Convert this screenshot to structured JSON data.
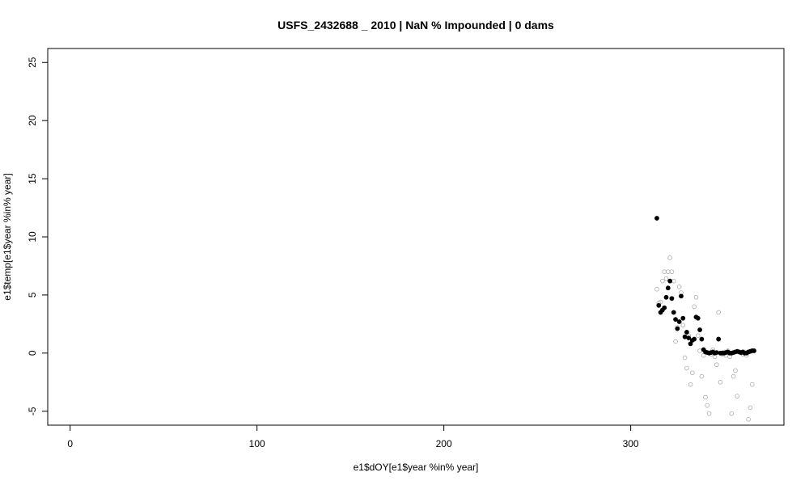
{
  "chart_data": {
    "type": "scatter",
    "title": "USFS_2432688 _ 2010   |   NaN  % Impounded |  0  dams",
    "xlabel": "e1$dOY[e1$year %in% year]",
    "ylabel": "e1$temp[e1$year %in% year]",
    "xlim": [
      -12,
      382
    ],
    "ylim": [
      -6.2,
      26.2
    ],
    "x_ticks": [
      0,
      100,
      200,
      300
    ],
    "x_tick_labels": [
      "0",
      "100",
      "200",
      "300"
    ],
    "y_ticks": [
      -5,
      0,
      5,
      10,
      15,
      20,
      25
    ],
    "y_tick_labels": [
      "-5",
      "0",
      "5",
      "10",
      "15",
      "20",
      "25"
    ],
    "grid": false,
    "series": [
      {
        "style": "filled-black",
        "color": "#000000",
        "points": [
          [
            314,
            11.6
          ],
          [
            315,
            4.1
          ],
          [
            316,
            3.5
          ],
          [
            317,
            3.7
          ],
          [
            318,
            3.9
          ],
          [
            319,
            4.8
          ],
          [
            320,
            5.6
          ],
          [
            321,
            6.2
          ],
          [
            322,
            4.7
          ],
          [
            323,
            3.5
          ],
          [
            324,
            2.9
          ],
          [
            325,
            2.1
          ],
          [
            326,
            2.7
          ],
          [
            327,
            4.9
          ],
          [
            328,
            3.0
          ],
          [
            329,
            1.4
          ],
          [
            330,
            1.8
          ],
          [
            331,
            1.3
          ],
          [
            332,
            0.8
          ],
          [
            333,
            1.1
          ],
          [
            334,
            1.2
          ],
          [
            335,
            3.1
          ],
          [
            336,
            3.0
          ],
          [
            337,
            2.0
          ],
          [
            338,
            1.2
          ],
          [
            339,
            0.3
          ],
          [
            340,
            0.1
          ],
          [
            341,
            0.05
          ],
          [
            342,
            0.0
          ],
          [
            343,
            0.05
          ],
          [
            344,
            0.1
          ],
          [
            345,
            0.0
          ],
          [
            346,
            0.05
          ],
          [
            347,
            1.2
          ],
          [
            348,
            0.0
          ],
          [
            349,
            0.0
          ],
          [
            350,
            0.0
          ],
          [
            351,
            0.05
          ],
          [
            352,
            0.1
          ],
          [
            353,
            0.0
          ],
          [
            354,
            0.0
          ],
          [
            355,
            0.05
          ],
          [
            356,
            0.1
          ],
          [
            357,
            0.15
          ],
          [
            358,
            0.1
          ],
          [
            359,
            0.05
          ],
          [
            360,
            0.1
          ],
          [
            361,
            0.0
          ],
          [
            362,
            0.0
          ],
          [
            363,
            0.1
          ],
          [
            364,
            0.15
          ],
          [
            365,
            0.2
          ],
          [
            366,
            0.2
          ]
        ]
      },
      {
        "style": "open-gray",
        "color": "#aaaaaa",
        "points": [
          [
            314,
            5.5
          ],
          [
            315,
            4.3
          ],
          [
            316,
            4.4
          ],
          [
            317,
            6.2
          ],
          [
            318,
            7.0
          ],
          [
            319,
            6.4
          ],
          [
            320,
            7.0
          ],
          [
            321,
            8.2
          ],
          [
            322,
            7.0
          ],
          [
            323,
            6.2
          ],
          [
            324,
            1.0
          ],
          [
            325,
            2.2
          ],
          [
            326,
            5.7
          ],
          [
            327,
            5.2
          ],
          [
            328,
            2.4
          ],
          [
            329,
            -0.4
          ],
          [
            330,
            -1.3
          ],
          [
            331,
            1.5
          ],
          [
            332,
            -2.7
          ],
          [
            333,
            -1.7
          ],
          [
            334,
            4.0
          ],
          [
            335,
            4.8
          ],
          [
            336,
            1.5
          ],
          [
            337,
            0.2
          ],
          [
            338,
            -2.0
          ],
          [
            339,
            -0.2
          ],
          [
            340,
            -3.8
          ],
          [
            341,
            -4.5
          ],
          [
            342,
            -5.2
          ],
          [
            343,
            -0.1
          ],
          [
            344,
            0.3
          ],
          [
            345,
            -0.3
          ],
          [
            346,
            -1.0
          ],
          [
            347,
            3.5
          ],
          [
            348,
            -2.5
          ],
          [
            349,
            -0.1
          ],
          [
            350,
            0.1
          ],
          [
            351,
            -0.2
          ],
          [
            352,
            0.2
          ],
          [
            353,
            -0.3
          ],
          [
            354,
            -5.2
          ],
          [
            355,
            -2.0
          ],
          [
            356,
            -1.5
          ],
          [
            357,
            -3.7
          ],
          [
            358,
            0.1
          ],
          [
            359,
            0.0
          ],
          [
            360,
            -0.1
          ],
          [
            361,
            0.1
          ],
          [
            362,
            -0.2
          ],
          [
            363,
            -5.7
          ],
          [
            364,
            -4.7
          ],
          [
            365,
            -2.7
          ]
        ]
      }
    ]
  }
}
